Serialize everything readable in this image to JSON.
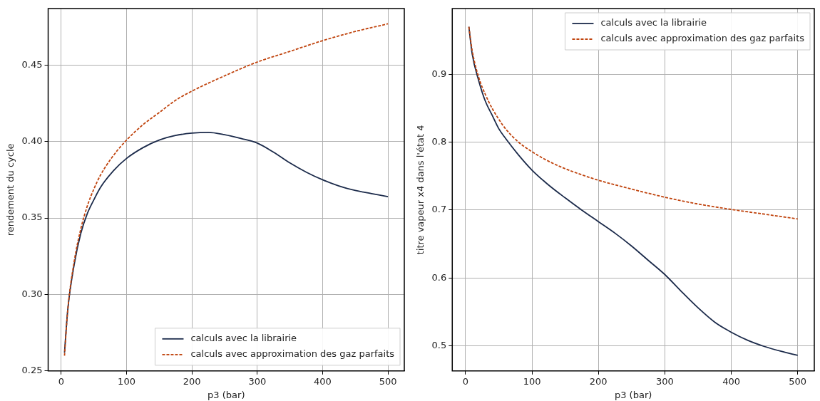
{
  "chart_data": [
    {
      "type": "line",
      "xlabel": "p3 (bar)",
      "ylabel": "rendement du cycle",
      "xlim": [
        -20,
        525
      ],
      "ylim": [
        0.25,
        0.487
      ],
      "xticks": [
        0,
        100,
        200,
        300,
        400,
        500
      ],
      "yticks": [
        {
          "value": 0.25,
          "label": "0.25"
        },
        {
          "value": 0.3,
          "label": "0.30"
        },
        {
          "value": 0.35,
          "label": "0.35"
        },
        {
          "value": 0.4,
          "label": "0.40"
        },
        {
          "value": 0.45,
          "label": "0.45"
        }
      ],
      "grid": true,
      "legend": "bottom right",
      "marker": "none",
      "series": [
        {
          "name": "calculs avec la librairie",
          "color": "#1b2a4a",
          "line_style": "solid",
          "x": [
            5,
            10,
            20,
            30,
            40,
            50,
            60,
            80,
            100,
            125,
            150,
            175,
            200,
            225,
            250,
            275,
            300,
            325,
            350,
            375,
            400,
            425,
            450,
            475,
            500
          ],
          "values": [
            0.262,
            0.29,
            0.32,
            0.34,
            0.353,
            0.362,
            0.37,
            0.381,
            0.389,
            0.396,
            0.401,
            0.404,
            0.4055,
            0.406,
            0.4045,
            0.402,
            0.399,
            0.393,
            0.386,
            0.38,
            0.375,
            0.371,
            0.368,
            0.366,
            0.364
          ]
        },
        {
          "name": "calculs avec approximation des gaz parfaits",
          "color": "#c0440e",
          "line_style": "dashed",
          "x": [
            5,
            10,
            20,
            30,
            40,
            50,
            60,
            80,
            100,
            125,
            150,
            175,
            200,
            250,
            300,
            350,
            400,
            450,
            500
          ],
          "values": [
            0.26,
            0.29,
            0.322,
            0.343,
            0.358,
            0.369,
            0.378,
            0.391,
            0.401,
            0.411,
            0.419,
            0.427,
            0.433,
            0.443,
            0.452,
            0.459,
            0.466,
            0.472,
            0.477
          ]
        }
      ]
    },
    {
      "type": "line",
      "xlabel": "p3 (bar)",
      "ylabel": "titre vapeur x4 dans l'état 4",
      "xlim": [
        -20,
        525
      ],
      "ylim": [
        0.463,
        0.997
      ],
      "xticks": [
        0,
        100,
        200,
        300,
        400,
        500
      ],
      "yticks": [
        0.5,
        0.6,
        0.7,
        0.8,
        0.9
      ],
      "grid": true,
      "legend": "top right",
      "marker": "none",
      "series": [
        {
          "name": "calculs avec la librairie",
          "color": "#1b2a4a",
          "line_style": "solid",
          "x": [
            5,
            10,
            20,
            30,
            40,
            50,
            60,
            80,
            100,
            125,
            150,
            175,
            200,
            225,
            250,
            275,
            300,
            325,
            350,
            375,
            400,
            425,
            450,
            475,
            500
          ],
          "values": [
            0.97,
            0.93,
            0.89,
            0.86,
            0.84,
            0.82,
            0.806,
            0.781,
            0.759,
            0.737,
            0.718,
            0.7,
            0.683,
            0.666,
            0.647,
            0.626,
            0.605,
            0.58,
            0.556,
            0.535,
            0.52,
            0.508,
            0.499,
            0.492,
            0.486
          ]
        },
        {
          "name": "calculs avec approximation des gaz parfaits",
          "color": "#c0440e",
          "line_style": "dashed",
          "x": [
            5,
            10,
            20,
            30,
            40,
            50,
            60,
            80,
            100,
            125,
            150,
            175,
            200,
            250,
            300,
            350,
            400,
            450,
            500
          ],
          "values": [
            0.97,
            0.935,
            0.895,
            0.87,
            0.85,
            0.834,
            0.82,
            0.8,
            0.786,
            0.772,
            0.761,
            0.752,
            0.744,
            0.731,
            0.719,
            0.709,
            0.701,
            0.694,
            0.687
          ]
        }
      ]
    }
  ]
}
